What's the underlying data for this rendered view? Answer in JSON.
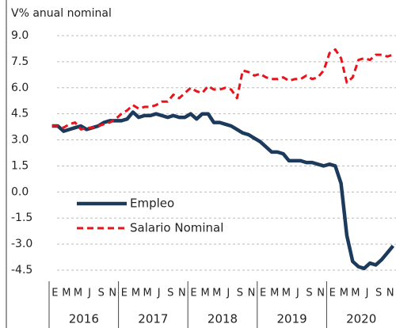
{
  "chart_data": {
    "type": "line",
    "subtitle": "V% anual nominal",
    "categories": [
      "E",
      null,
      "M",
      null,
      "M",
      null,
      "J",
      null,
      "S",
      null,
      "N",
      null,
      "E",
      null,
      "M",
      null,
      "M",
      null,
      "J",
      null,
      "S",
      null,
      "N",
      null,
      "E",
      null,
      "M",
      null,
      "M",
      null,
      "J",
      null,
      "S",
      null,
      "N",
      null,
      "E",
      null,
      "M",
      null,
      "M",
      null,
      "J",
      null,
      "S",
      null,
      "N",
      null,
      "E",
      null,
      "M",
      null,
      "M",
      null,
      "J",
      null,
      "S",
      null,
      "N",
      null
    ],
    "years": [
      "2016",
      "2017",
      "2018",
      "2019",
      "2020"
    ],
    "series": [
      {
        "name": "Empleo",
        "color": "#1b3a5c",
        "dash": false,
        "values": [
          3.8,
          3.8,
          3.5,
          3.6,
          3.7,
          3.8,
          3.6,
          3.7,
          3.8,
          4.0,
          4.1,
          4.1,
          4.1,
          4.2,
          4.6,
          4.3,
          4.4,
          4.4,
          4.5,
          4.4,
          4.3,
          4.4,
          4.3,
          4.3,
          4.5,
          4.2,
          4.5,
          4.5,
          4.0,
          4.0,
          3.9,
          3.8,
          3.6,
          3.4,
          3.3,
          3.1,
          2.9,
          2.6,
          2.3,
          2.3,
          2.2,
          1.8,
          1.8,
          1.8,
          1.7,
          1.7,
          1.6,
          1.5,
          1.6,
          1.5,
          0.5,
          -2.5,
          -4.0,
          -4.3,
          -4.4,
          -4.1,
          -4.2,
          -3.9,
          -3.5,
          -3.1
        ]
      },
      {
        "name": "Salario Nominal",
        "color": "#e8141c",
        "dash": true,
        "values": [
          3.8,
          3.8,
          3.7,
          3.9,
          4.0,
          3.6,
          3.7,
          3.7,
          3.8,
          3.9,
          4.0,
          4.2,
          4.5,
          4.7,
          5.0,
          4.8,
          4.9,
          4.9,
          5.0,
          5.2,
          5.2,
          5.6,
          5.4,
          5.7,
          6.0,
          5.8,
          5.7,
          6.1,
          5.9,
          5.9,
          6.0,
          5.9,
          5.4,
          7.0,
          6.9,
          6.7,
          6.8,
          6.6,
          6.5,
          6.5,
          6.6,
          6.4,
          6.5,
          6.5,
          6.7,
          6.5,
          6.6,
          7.0,
          8.0,
          8.2,
          7.7,
          6.3,
          6.6,
          7.6,
          7.7,
          7.6,
          7.9,
          7.9,
          7.8,
          7.9
        ]
      }
    ],
    "ylim": [
      -4.5,
      9.0
    ],
    "yticks": [
      {
        "value": 9,
        "label": "9.0"
      },
      7.5,
      {
        "value": 6,
        "label": "6.0"
      },
      4.5,
      {
        "value": 3,
        "label": "3.0"
      },
      1.5,
      {
        "value": 0,
        "label": "0.0"
      },
      -1.5,
      {
        "value": -3,
        "label": "-3.0"
      },
      -4.5
    ],
    "grid": true,
    "legend": "lower-left"
  }
}
